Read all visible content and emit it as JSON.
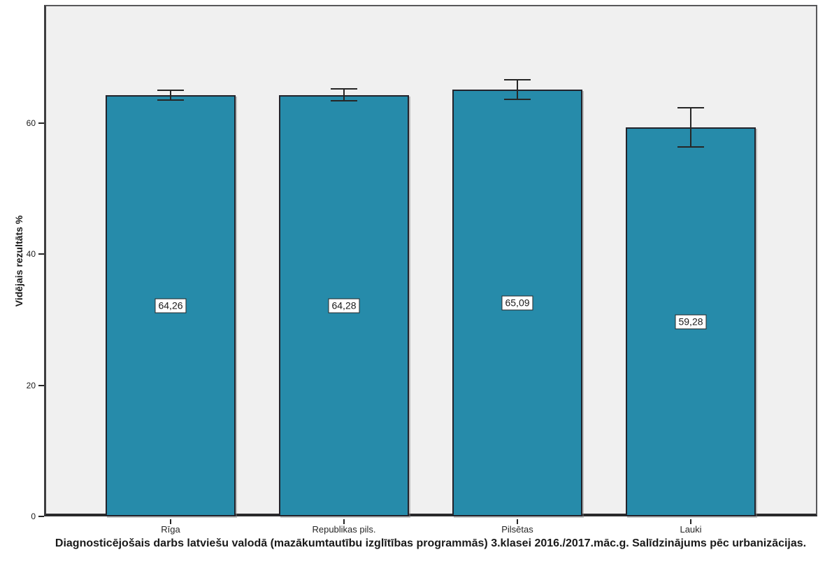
{
  "chart_data": {
    "type": "bar",
    "title": "Diagnosticējošais darbs latviešu valodā (mazākumtautību izglītības programmās) 3.klasei 2016./2017.māc.g. Salīdzinājums pēc urbanizācijas.",
    "ylabel": "Vidējais rezultāts %",
    "xlabel": "",
    "categories": [
      "Rīga",
      "Republikas pils.",
      "Pilsētas",
      "Lauki"
    ],
    "values": [
      64.26,
      64.28,
      65.09,
      59.28
    ],
    "value_labels": [
      "64,26",
      "64,28",
      "65,09",
      "59,28"
    ],
    "error_bars": {
      "kind": "confidence-interval",
      "low": [
        63.5,
        63.4,
        63.6,
        56.3
      ],
      "high": [
        65.0,
        65.2,
        66.6,
        62.3
      ]
    },
    "yticks": [
      0,
      20,
      40,
      60
    ],
    "ylim": [
      0,
      78
    ],
    "grid": false,
    "legend": null,
    "plot_background": "#F0F0F0",
    "bar_color": "#268BAA",
    "bar_border_color": "#23232B",
    "error_bar_color": "#262626",
    "value_box_background": "#FFFFFF"
  }
}
